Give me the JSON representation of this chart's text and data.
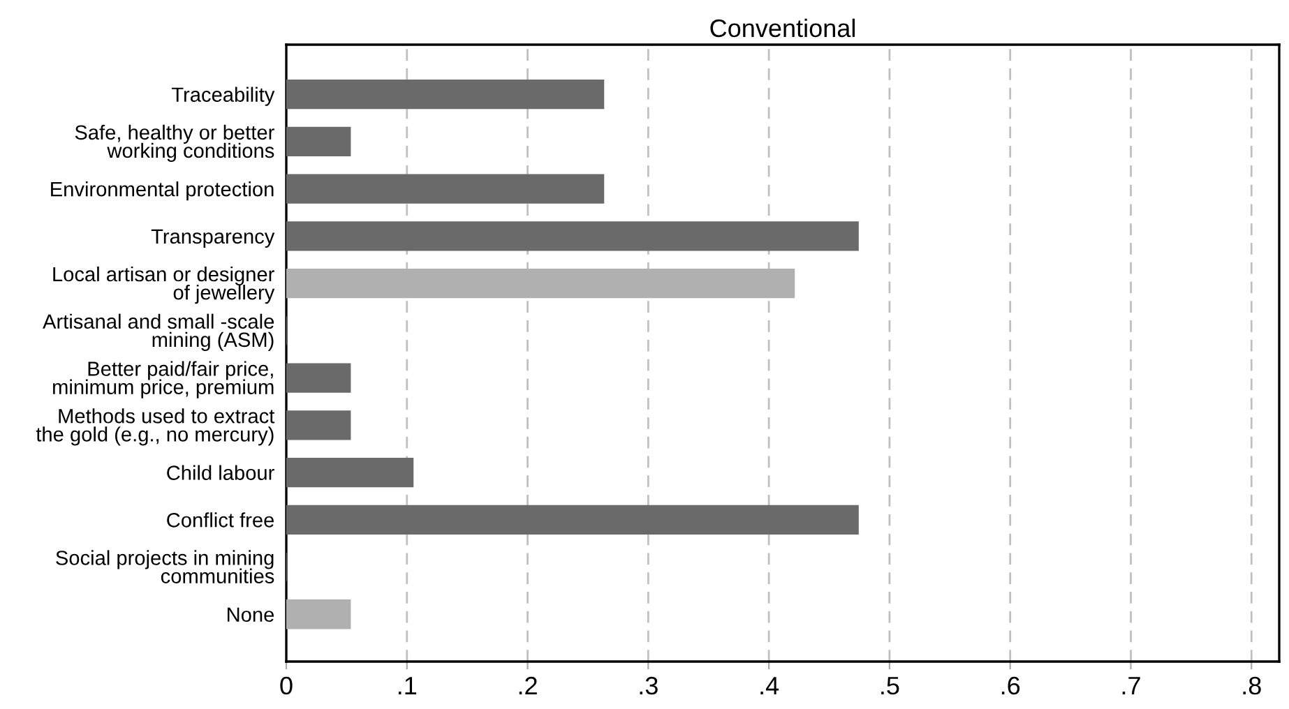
{
  "chart_data": {
    "type": "bar",
    "orientation": "horizontal",
    "title": "Conventional",
    "categories": [
      "Traceability",
      "Safe, healthy or better\nworking conditions",
      "Environmental protection",
      "Transparency",
      "Local artisan or designer\nof jewellery",
      "Artisanal and small -scale\nmining (ASM)",
      "Better paid/fair price,\nminimum price, premium",
      "Methods used to extract\nthe gold (e.g., no mercury)",
      "Child labour",
      "Conflict free",
      "Social projects in mining\ncommunities",
      "None"
    ],
    "values": [
      0.263,
      0.053,
      0.263,
      0.474,
      0.421,
      0,
      0.053,
      0.053,
      0.105,
      0.474,
      0,
      0.053
    ],
    "colors": [
      "#6a6a6a",
      "#6a6a6a",
      "#6a6a6a",
      "#6a6a6a",
      "#b0b0b0",
      "#6a6a6a",
      "#6a6a6a",
      "#6a6a6a",
      "#6a6a6a",
      "#6a6a6a",
      "#6a6a6a",
      "#b0b0b0"
    ],
    "xlim": [
      0,
      0.823
    ],
    "xticks": [
      0,
      {
        "value": 0.1,
        "label": ".1"
      },
      {
        "value": 0.2,
        "label": ".2"
      },
      {
        "value": 0.3,
        "label": ".3"
      },
      {
        "value": 0.4,
        "label": ".4"
      },
      {
        "value": 0.5,
        "label": ".5"
      },
      {
        "value": 0.6,
        "label": ".6"
      },
      {
        "value": 0.7,
        "label": ".7"
      },
      {
        "value": 0.8,
        "label": ".8"
      }
    ],
    "grid": "x"
  }
}
